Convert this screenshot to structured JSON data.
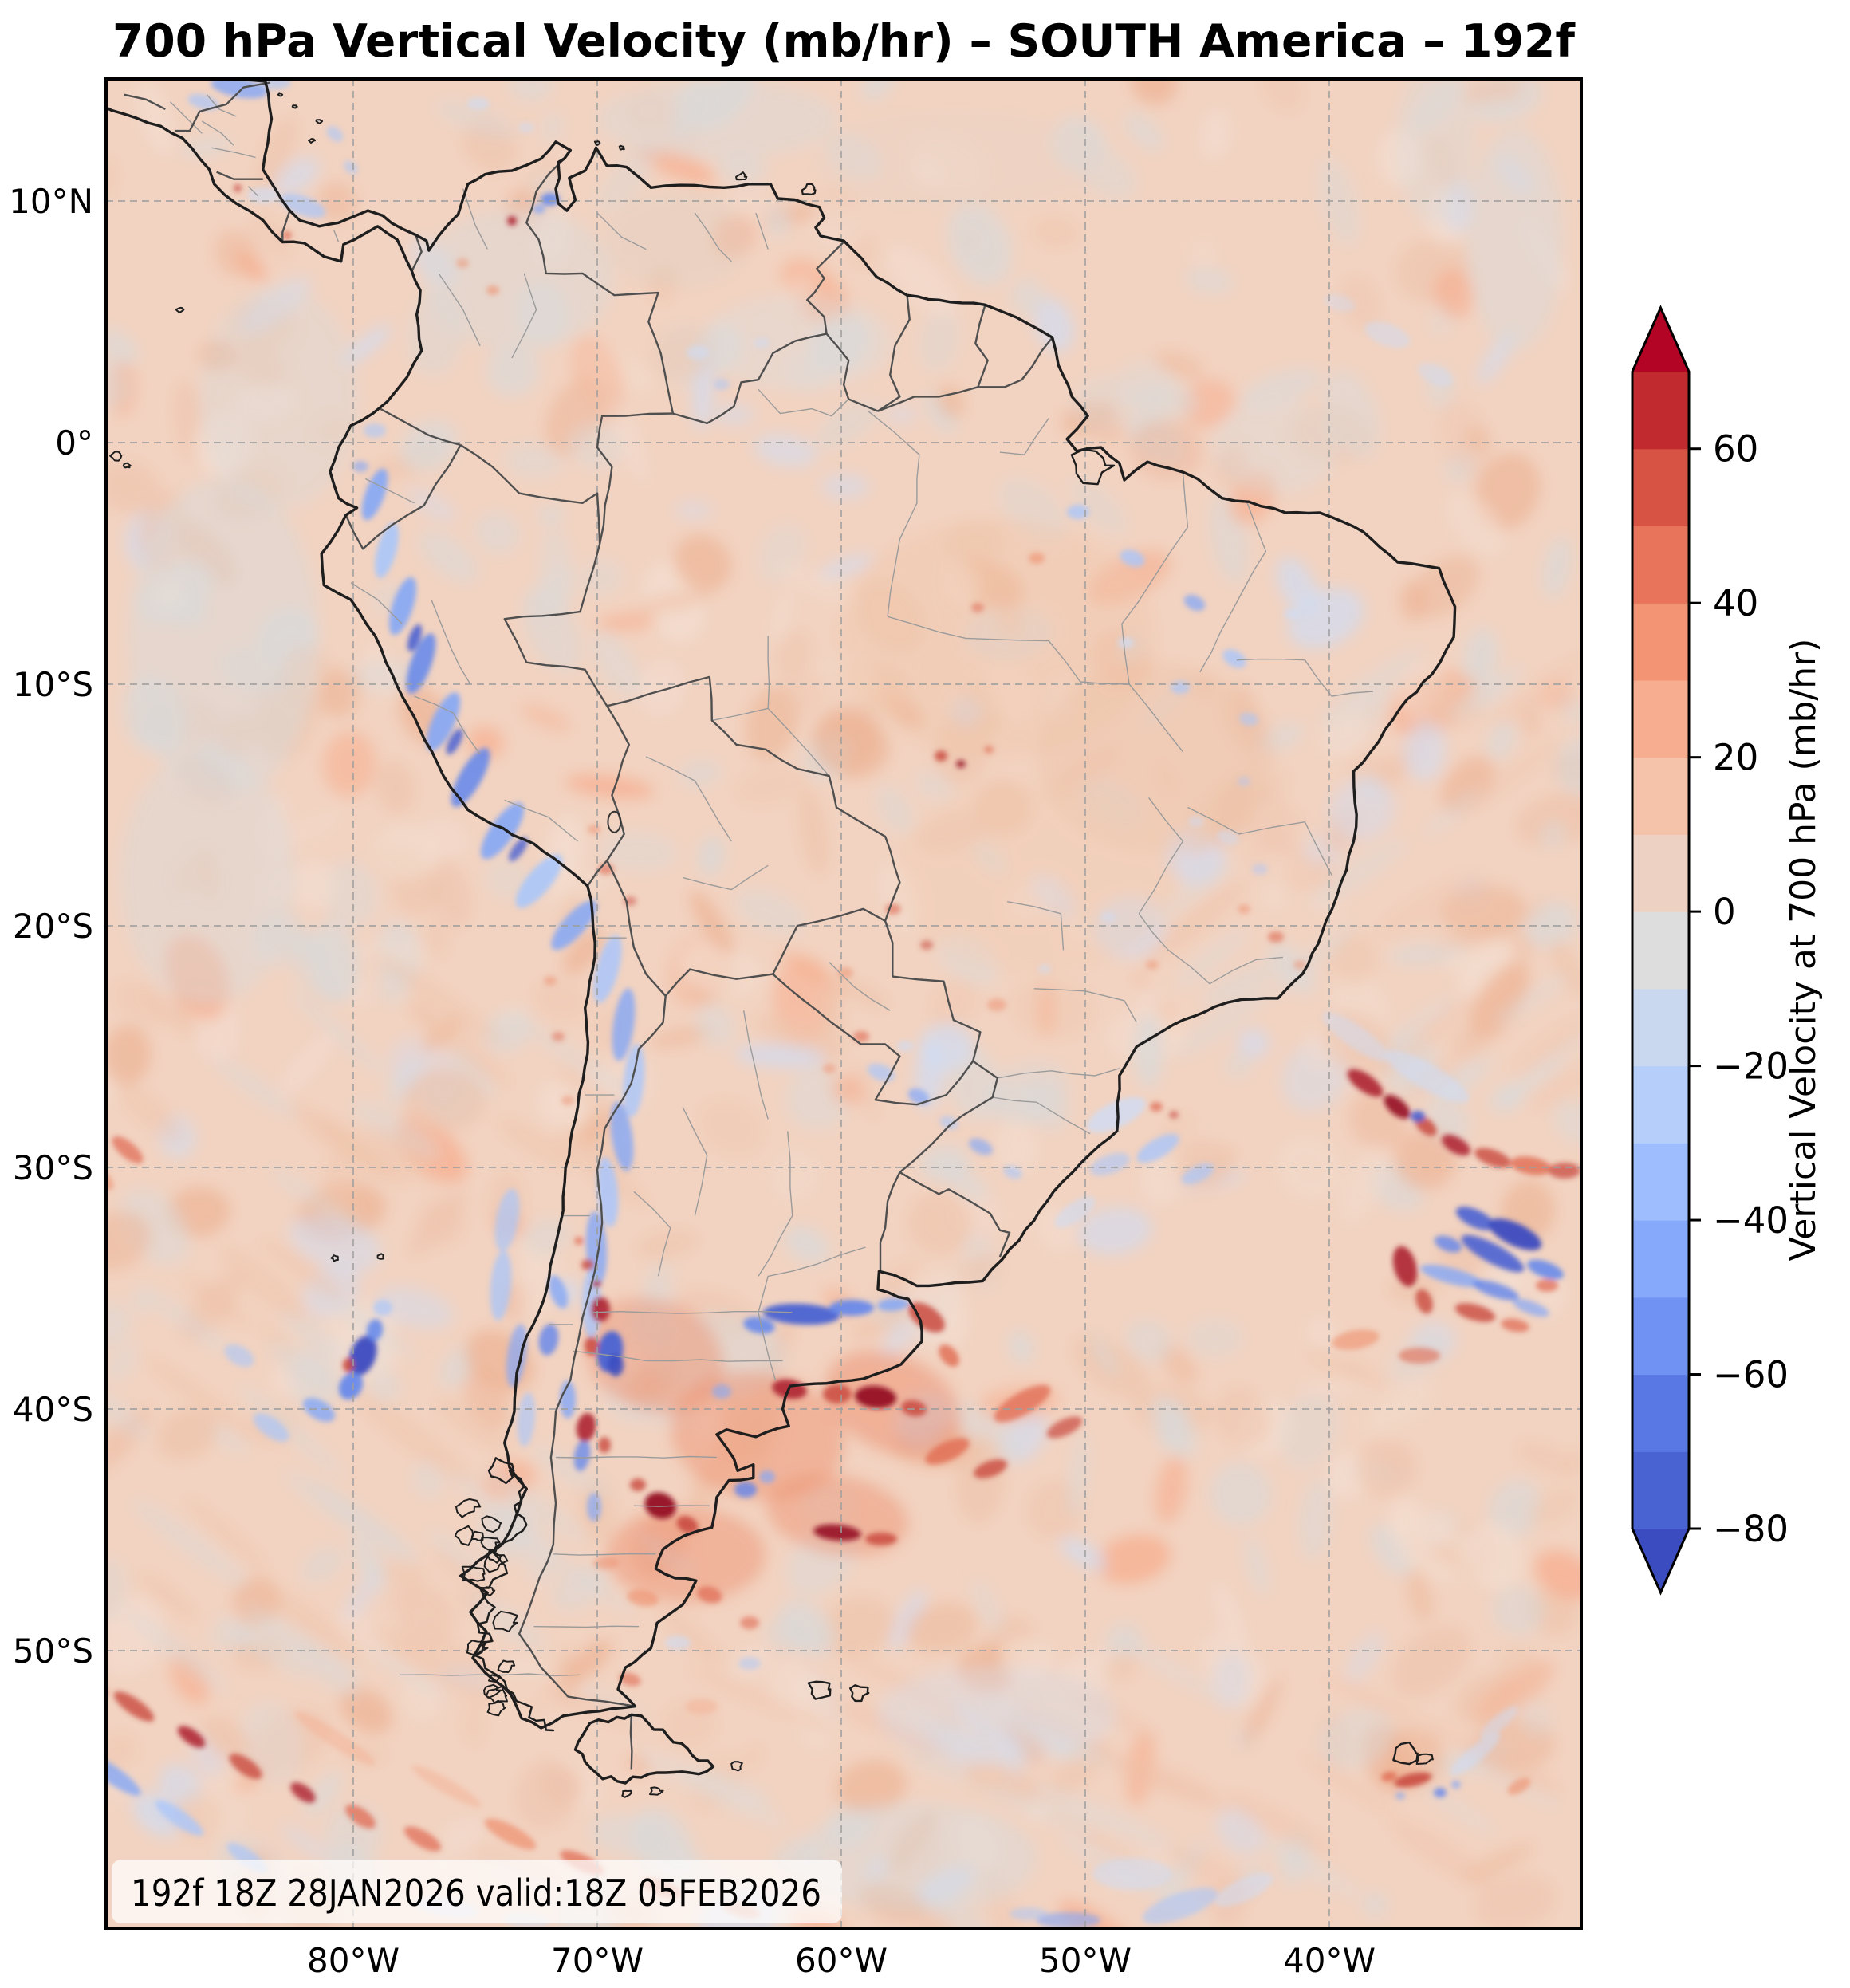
{
  "title": "700 hPa Vertical Velocity (mb/hr) – SOUTH America – 192f",
  "stamp": "192f 18Z 28JAN2026 valid:18Z 05FEB2026",
  "axes": {
    "lat_ticks": [
      {
        "label": "10°N",
        "lat": 10
      },
      {
        "label": "0°",
        "lat": 0
      },
      {
        "label": "10°S",
        "lat": -10
      },
      {
        "label": "20°S",
        "lat": -20
      },
      {
        "label": "30°S",
        "lat": -30
      },
      {
        "label": "40°S",
        "lat": -40
      },
      {
        "label": "50°S",
        "lat": -50
      }
    ],
    "lon_ticks": [
      {
        "label": "80°W",
        "lon": -80
      },
      {
        "label": "70°W",
        "lon": -70
      },
      {
        "label": "60°W",
        "lon": -60
      },
      {
        "label": "50°W",
        "lon": -50
      },
      {
        "label": "40°W",
        "lon": -40
      }
    ]
  },
  "colorbar": {
    "label": "Vertical Velocity at 700 hPa (mb/hr)",
    "ticks": [
      {
        "value": 60,
        "label": "60"
      },
      {
        "value": 40,
        "label": "40"
      },
      {
        "value": 20,
        "label": "20"
      },
      {
        "value": 0,
        "label": "0"
      },
      {
        "value": -20,
        "label": "−20"
      },
      {
        "value": -40,
        "label": "−40"
      },
      {
        "value": -60,
        "label": "−60"
      },
      {
        "value": -80,
        "label": "−80"
      }
    ],
    "level_min": -80,
    "level_max": 70,
    "level_step": 10,
    "extend": "both",
    "under_color": "#3b4cc0",
    "over_color": "#b40426",
    "band_colors_bottom_to_top": [
      "#4a63d3",
      "#5a78e4",
      "#7092f3",
      "#87a9fc",
      "#9dbdff",
      "#b5cefa",
      "#cad8ef",
      "#dddddd",
      "#edd2c3",
      "#f5c2aa",
      "#f7ae90",
      "#f39475",
      "#e7745b",
      "#d75445",
      "#c12b30"
    ]
  },
  "chart_data": {
    "type": "heatmap",
    "title": "700 hPa Vertical Velocity (mb/hr) – SOUTH America – 192f",
    "variable": "Vertical Velocity at 700 hPa",
    "units": "mb/hr",
    "pressure_level": "700 hPa",
    "forecast_hour": 192,
    "init_time": "18Z 28JAN2026",
    "valid_time": "18Z 05FEB2026",
    "region": "South America",
    "colormap": "coolwarm (diverging blue–gray–red)",
    "value_range": [
      -80,
      70
    ],
    "extent": {
      "lon_min": -90,
      "lon_max": -30,
      "lat_min": -61.5,
      "lat_max": 15
    },
    "x_tick_labels": [
      "80°W",
      "70°W",
      "60°W",
      "50°W",
      "40°W"
    ],
    "y_tick_labels": [
      "10°N",
      "0°",
      "10°S",
      "20°S",
      "30°S",
      "40°S",
      "50°S"
    ],
    "colorbar_ticks": [
      60,
      40,
      20,
      0,
      -20,
      -40,
      -60,
      -80
    ],
    "grid": "dashed graticule every 10 degrees",
    "legend_position": "vertical colorbar right of map",
    "notable_features": [
      "Narrow blue band of strong vertical-motion couplets along the Andes from Ecuador through Peru and Bolivia into NW Argentina",
      "Cluster of intense dark-red updraft cells (> +60 mb/hr) over central Argentina and the Pampas between 35°S and 45°S",
      "Strong dark-blue descent band near Buenos Aires / Río de la Plata around 35°S–36°S",
      "Cyclonic swirl of alternating red/blue streaks in the South Atlantic near 32°S 38°W with a dark-blue core",
      "Blue descent core with red knot in the SE Pacific near 40°S 80°W (Juan Fernández area)",
      "Diagonal red/blue gravity-wave streaks across the far South Pacific (bottom-left) and Southern Ocean",
      "Weak rising motion (pale orange 0–20 mb/hr) with scattered gray/pale-blue neutral patches over the Amazon basin and tropical oceans",
      "Orographic red cell with flanking blue over South Georgia island near 54°S 37°W"
    ]
  }
}
